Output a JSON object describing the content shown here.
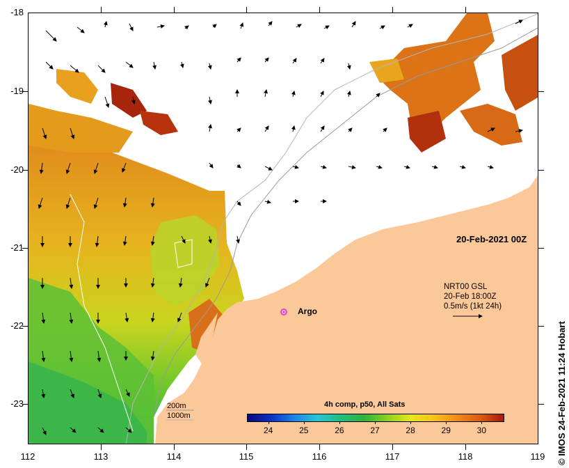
{
  "map": {
    "lat_labels": [
      "-18",
      "-19",
      "-20",
      "-21",
      "-22",
      "-23"
    ],
    "lon_labels": [
      "112",
      "113",
      "114",
      "115",
      "116",
      "117",
      "118",
      "119"
    ],
    "lat_range": [
      -23.5,
      -18
    ],
    "lon_range": [
      112,
      119
    ],
    "date_label": "20-Feb-2021 00Z",
    "vector_legend": {
      "line1": "NRT00 GSL",
      "line2": "20-Feb 18:00Z",
      "line3": "0.5m/s (1kt 24h)"
    },
    "argo_label": "Argo",
    "depth_legend": {
      "line1": "200m",
      "line2": "1000m"
    },
    "colorbar": {
      "title": "4h comp, p50, All Sats",
      "labels": [
        "24",
        "25",
        "26",
        "27",
        "28",
        "29",
        "30"
      ],
      "range": [
        23.4,
        30.6
      ]
    },
    "credit": "© IMOS 24-Feb-2021 11:24 Hobart",
    "colors": {
      "land": "#fbc89a",
      "cold_green": "#3cb84a",
      "mid_yellow": "#e3c81c",
      "warm_orange": "#e48a1a",
      "hot_red": "#a8280e",
      "argo_marker": "#e040e0"
    }
  }
}
